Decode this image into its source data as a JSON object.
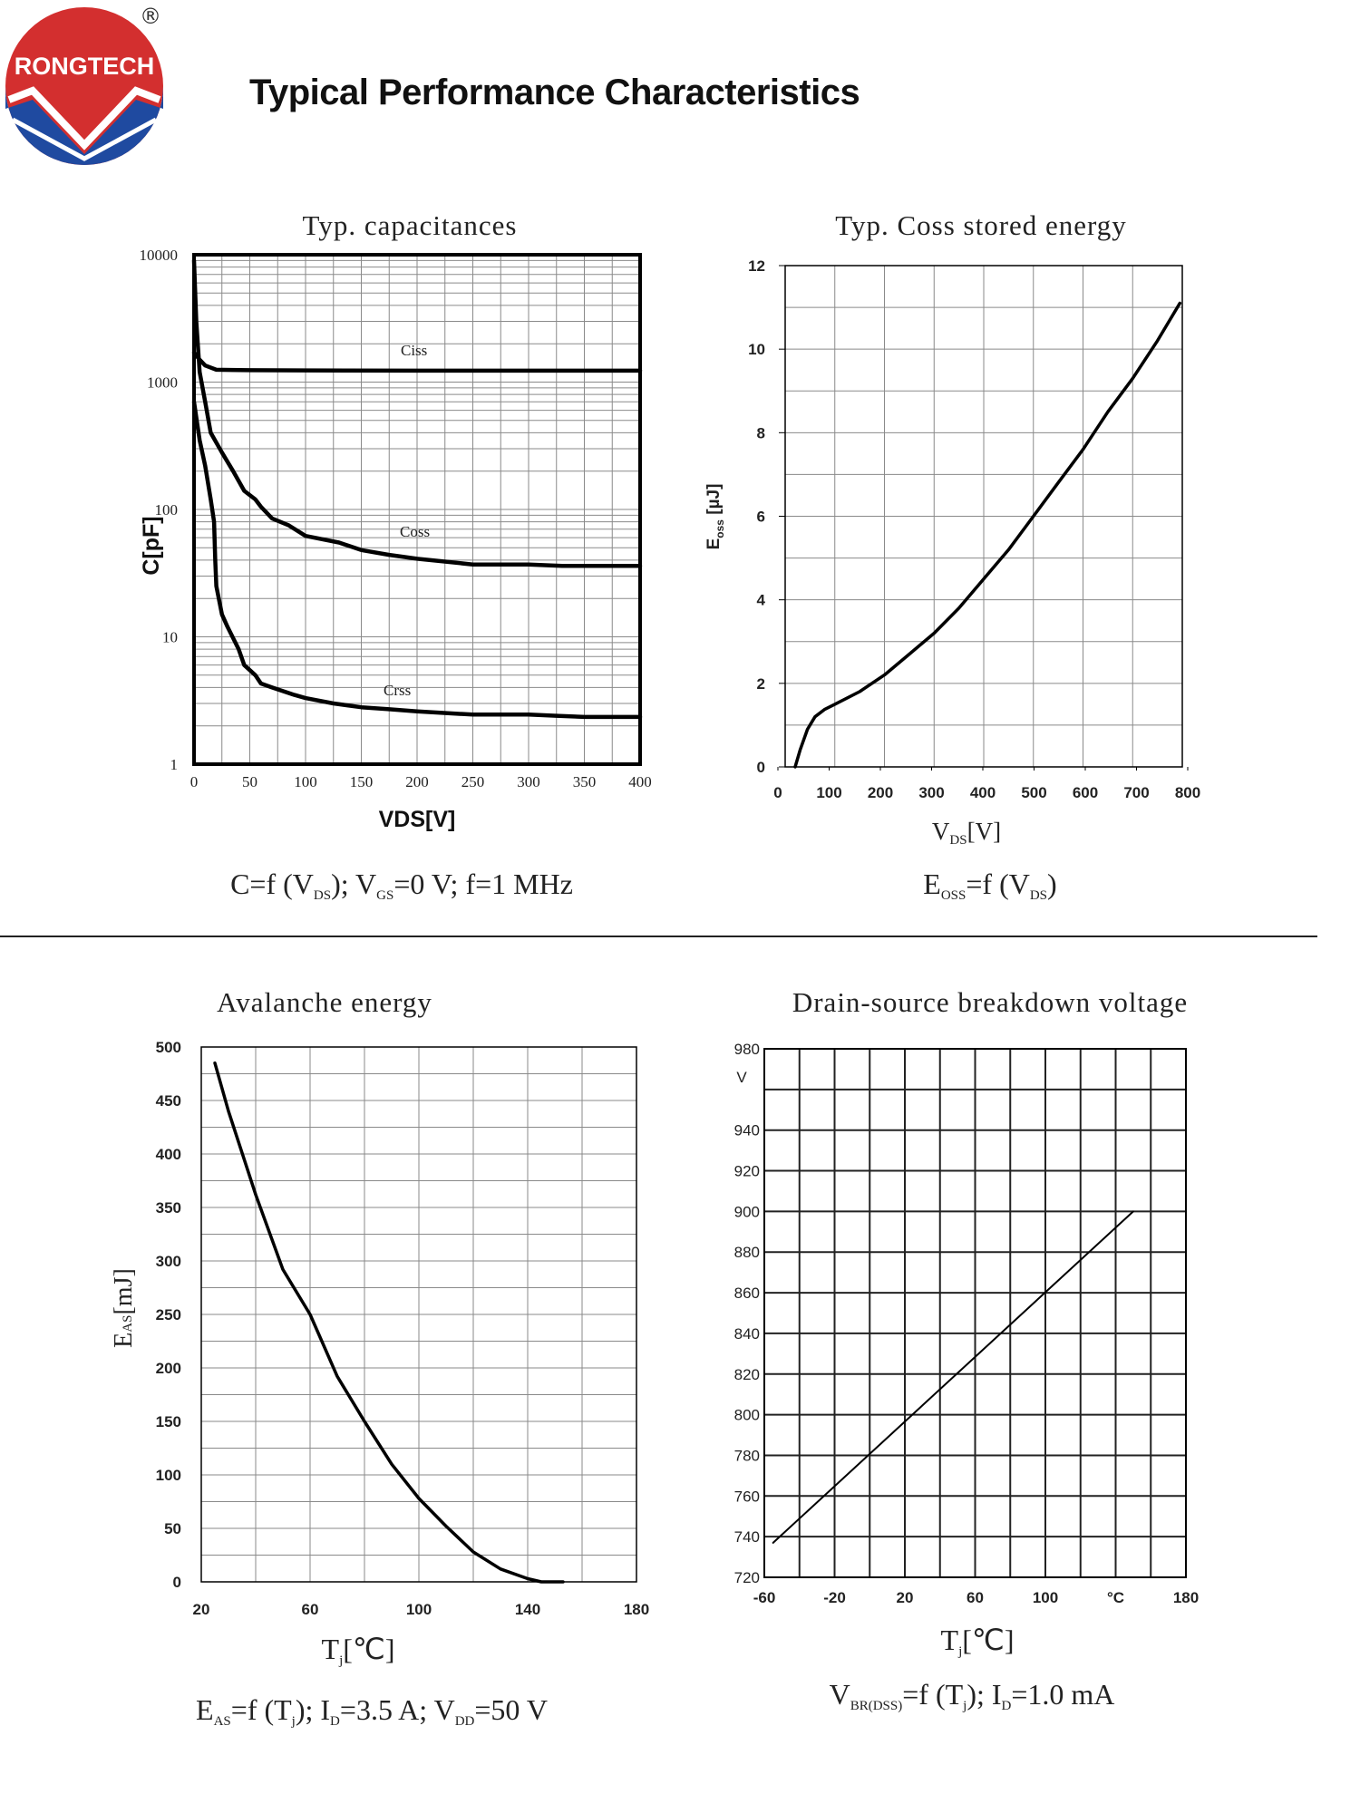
{
  "page": {
    "title": "Typical Performance Characteristics",
    "logo_text": "RONGTECH",
    "registered_mark": "®"
  },
  "colors": {
    "logo_red": "#d32f2f",
    "logo_blue": "#1f4aa0",
    "ink": "#000000",
    "grid": "#8a8a8a"
  },
  "chart_data": [
    {
      "id": "capacitances",
      "type": "line",
      "title": "Typ. capacitances",
      "xlabel": "VDS[V]",
      "ylabel": "C[pF]",
      "yscale": "log",
      "xlim": [
        0,
        400
      ],
      "ylim": [
        1,
        10000
      ],
      "x_ticks": [
        "0",
        "50",
        "100",
        "150",
        "200",
        "250",
        "300",
        "350",
        "400"
      ],
      "y_ticks": [
        "1",
        "10",
        "100",
        "1000",
        "10000"
      ],
      "formula": {
        "main": "C=f (V",
        "s1": "DS",
        "p1": "); V",
        "s2": "GS",
        "p2": "=0 V; f=1 MHz"
      },
      "series": [
        {
          "name": "Ciss",
          "points": [
            [
              0,
              1700
            ],
            [
              5,
              1500
            ],
            [
              10,
              1350
            ],
            [
              20,
              1250
            ],
            [
              50,
              1240
            ],
            [
              100,
              1235
            ],
            [
              200,
              1230
            ],
            [
              300,
              1230
            ],
            [
              400,
              1230
            ]
          ]
        },
        {
          "name": "Coss",
          "points": [
            [
              0,
              9000
            ],
            [
              2,
              3000
            ],
            [
              5,
              1200
            ],
            [
              10,
              700
            ],
            [
              15,
              400
            ],
            [
              25,
              280
            ],
            [
              35,
              200
            ],
            [
              45,
              140
            ],
            [
              55,
              120
            ],
            [
              60,
              105
            ],
            [
              70,
              85
            ],
            [
              85,
              75
            ],
            [
              100,
              62
            ],
            [
              130,
              55
            ],
            [
              150,
              48
            ],
            [
              175,
              44
            ],
            [
              200,
              41
            ],
            [
              250,
              37
            ],
            [
              300,
              37
            ],
            [
              330,
              36
            ],
            [
              400,
              36
            ]
          ]
        },
        {
          "name": "Crss",
          "points": [
            [
              0,
              700
            ],
            [
              5,
              350
            ],
            [
              10,
              220
            ],
            [
              15,
              120
            ],
            [
              18,
              80
            ],
            [
              19,
              40
            ],
            [
              20,
              25
            ],
            [
              25,
              15
            ],
            [
              30,
              12
            ],
            [
              40,
              8
            ],
            [
              45,
              6
            ],
            [
              55,
              5
            ],
            [
              60,
              4.3
            ],
            [
              70,
              4
            ],
            [
              90,
              3.5
            ],
            [
              100,
              3.3
            ],
            [
              125,
              3
            ],
            [
              150,
              2.8
            ],
            [
              175,
              2.7
            ],
            [
              200,
              2.6
            ],
            [
              250,
              2.45
            ],
            [
              300,
              2.45
            ],
            [
              325,
              2.4
            ],
            [
              350,
              2.35
            ],
            [
              400,
              2.35
            ]
          ]
        }
      ]
    },
    {
      "id": "coss_energy",
      "type": "line",
      "title": "Typ. Coss stored energy",
      "xlabel": "VDS[V]",
      "ylabel": "Eoss [µJ]",
      "xlim": [
        0,
        800
      ],
      "ylim": [
        0,
        12
      ],
      "x_ticks": [
        "0",
        "100",
        "200",
        "300",
        "400",
        "500",
        "600",
        "700",
        "800"
      ],
      "y_ticks": [
        "0",
        "2",
        "4",
        "6",
        "8",
        "10",
        "12"
      ],
      "formula": {
        "main": "E",
        "s1": "OSS",
        "p1": "=f (V",
        "s2": "DS",
        "p2": ")"
      },
      "series": [
        {
          "name": "Eoss",
          "points": [
            [
              20,
              0
            ],
            [
              30,
              0.4
            ],
            [
              45,
              0.9
            ],
            [
              60,
              1.2
            ],
            [
              80,
              1.38
            ],
            [
              100,
              1.5
            ],
            [
              150,
              1.8
            ],
            [
              200,
              2.2
            ],
            [
              250,
              2.7
            ],
            [
              300,
              3.2
            ],
            [
              350,
              3.8
            ],
            [
              400,
              4.5
            ],
            [
              450,
              5.2
            ],
            [
              500,
              6.0
            ],
            [
              550,
              6.8
            ],
            [
              600,
              7.6
            ],
            [
              650,
              8.5
            ],
            [
              700,
              9.3
            ],
            [
              750,
              10.2
            ],
            [
              795,
              11.1
            ]
          ]
        }
      ]
    },
    {
      "id": "avalanche_energy",
      "type": "line",
      "title": "Avalanche energy",
      "xlabel": "Tj[℃]",
      "ylabel": "EAS[mJ]",
      "xlim": [
        20,
        180
      ],
      "ylim": [
        0,
        500
      ],
      "x_ticks": [
        "20",
        "60",
        "100",
        "140",
        "180"
      ],
      "y_ticks": [
        "0",
        "50",
        "100",
        "150",
        "200",
        "250",
        "300",
        "350",
        "400",
        "450",
        "500"
      ],
      "formula": {
        "main": "E",
        "s1": "AS",
        "p1": "=f (T",
        "s2": "j",
        "p2": "); I",
        "s3": "D",
        "p3": "=3.5 A; V",
        "s4": "DD",
        "p4": "=50 V"
      },
      "series": [
        {
          "name": "EAS",
          "points": [
            [
              25,
              485
            ],
            [
              30,
              440
            ],
            [
              40,
              362
            ],
            [
              50,
              292
            ],
            [
              60,
              250
            ],
            [
              70,
              192
            ],
            [
              80,
              150
            ],
            [
              90,
              110
            ],
            [
              100,
              78
            ],
            [
              110,
              52
            ],
            [
              120,
              28
            ],
            [
              130,
              12
            ],
            [
              140,
              3
            ],
            [
              145,
              0
            ],
            [
              153,
              0
            ]
          ]
        }
      ]
    },
    {
      "id": "breakdown_voltage",
      "type": "line",
      "title": "Drain-source breakdown voltage",
      "xlabel": "Tj[℃]",
      "ylabel": "V",
      "xlim": [
        -60,
        180
      ],
      "ylim": [
        720,
        980
      ],
      "x_ticks": [
        "-60",
        "-20",
        "20",
        "60",
        "100",
        "°C",
        "180"
      ],
      "y_ticks": [
        "720",
        "740",
        "760",
        "780",
        "800",
        "820",
        "840",
        "860",
        "880",
        "900",
        "920",
        "940",
        "980"
      ],
      "y_unit": "V",
      "formula": {
        "main": "V",
        "s1": "BR(DSS)",
        "p1": "=f (T",
        "s2": "j",
        "p2": "); I",
        "s3": "D",
        "p3": "=1.0 mA"
      },
      "series": [
        {
          "name": "VBR(DSS)",
          "points": [
            [
              -55,
              737
            ],
            [
              150,
              900
            ]
          ]
        }
      ]
    }
  ]
}
